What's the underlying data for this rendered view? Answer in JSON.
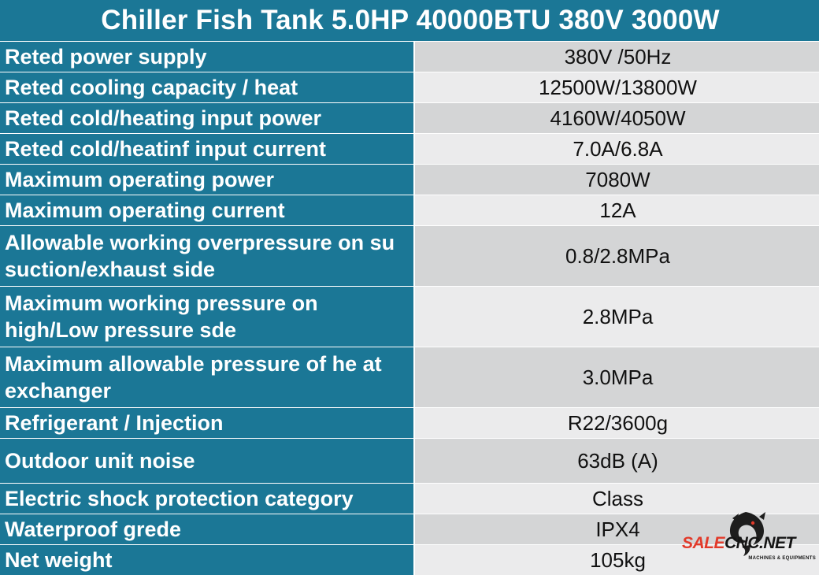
{
  "title": "Chiller Fish Tank 5.0HP 40000BTU 380V 3000W",
  "colors": {
    "header_bg": "#1b7796",
    "label_bg": "#1b7796",
    "value_bg_odd": "#d4d5d6",
    "value_bg_even": "#ebebec",
    "logo_red": "#e23a2a"
  },
  "specs": [
    {
      "label": "Reted power supply",
      "value": "380V /50Hz"
    },
    {
      "label": "Reted cooling capacity / heat",
      "value": "12500W/13800W"
    },
    {
      "label": "Reted cold/heating input power",
      "value": "4160W/4050W"
    },
    {
      "label": "Reted cold/heatinf input current",
      "value": "7.0A/6.8A"
    },
    {
      "label": "Maximum operating power",
      "value": "7080W"
    },
    {
      "label": "Maximum operating current",
      "value": "12A"
    },
    {
      "label": "Allowable working overpressure on su suction/exhaust side",
      "value": "0.8/2.8MPa"
    },
    {
      "label": "Maximum working pressure on high/Low pressure sde",
      "value": "2.8MPa"
    },
    {
      "label": "Maximum allowable pressure of he at exchanger",
      "value": "3.0MPa"
    },
    {
      "label": "Refrigerant / Injection",
      "value": "R22/3600g"
    },
    {
      "label": "Outdoor unit noise",
      "value": "63dB (A)"
    },
    {
      "label": "Electric shock protection category",
      "value": "Class"
    },
    {
      "label": "Waterproof grede",
      "value": "IPX4"
    },
    {
      "label": "Net weight",
      "value": "105kg"
    }
  ],
  "logo": {
    "part1": "SALE",
    "part2": "CNC.NET",
    "tagline": "MACHINES & EQUIPMENTS",
    "icon": "dragon-icon"
  }
}
